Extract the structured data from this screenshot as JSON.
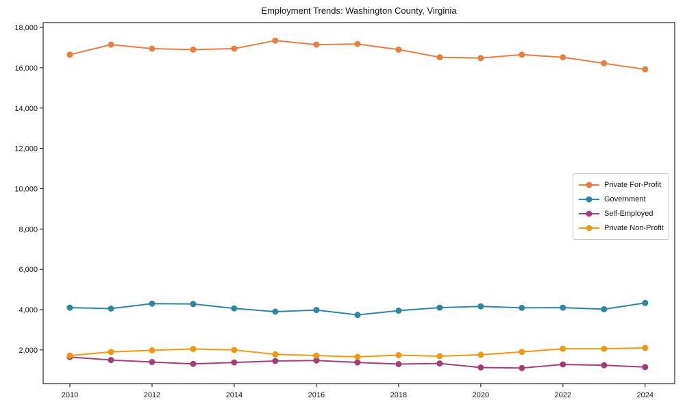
{
  "figure": {
    "background": "#ffffff",
    "spine_color": "#000000",
    "tick_color": "#000000"
  },
  "chart_data": {
    "type": "line",
    "title": "Employment Trends: Washington County, Virginia",
    "xlabel": "",
    "ylabel": "",
    "grid": false,
    "legend_position": "center-right",
    "marker": "circle",
    "x": [
      2010,
      2011,
      2012,
      2013,
      2014,
      2015,
      2016,
      2017,
      2018,
      2019,
      2020,
      2021,
      2022,
      2023,
      2024
    ],
    "xtick_values": [
      2010,
      2012,
      2014,
      2016,
      2018,
      2020,
      2022,
      2024
    ],
    "xtick_labels": [
      "2010",
      "2012",
      "2014",
      "2016",
      "2018",
      "2020",
      "2022",
      "2024"
    ],
    "ytick_values": [
      2000,
      4000,
      6000,
      8000,
      10000,
      12000,
      14000,
      16000,
      18000
    ],
    "ytick_labels": [
      "2,000",
      "4,000",
      "6,000",
      "8,000",
      "10,000",
      "12,000",
      "14,000",
      "16,000",
      "18,000"
    ],
    "xlim": [
      2009.35,
      2024.72
    ],
    "ylim": [
      330,
      18240
    ],
    "series": [
      {
        "name": "Private For-Profit",
        "color": "#e67e41",
        "values": [
          16650,
          17150,
          16950,
          16900,
          16950,
          17350,
          17150,
          17180,
          16900,
          16520,
          16480,
          16650,
          16520,
          16220,
          15920
        ]
      },
      {
        "name": "Government",
        "color": "#2e86a2",
        "values": [
          4100,
          4050,
          4300,
          4280,
          4060,
          3900,
          3980,
          3740,
          3950,
          4100,
          4160,
          4090,
          4100,
          4020,
          4330
        ]
      },
      {
        "name": "Self-Employed",
        "color": "#a23d79",
        "values": [
          1650,
          1500,
          1400,
          1310,
          1380,
          1450,
          1480,
          1380,
          1300,
          1330,
          1130,
          1100,
          1280,
          1240,
          1150
        ]
      },
      {
        "name": "Private Non-Profit",
        "color": "#f0980e",
        "values": [
          1720,
          1900,
          1980,
          2050,
          2000,
          1780,
          1720,
          1660,
          1740,
          1690,
          1760,
          1900,
          2060,
          2060,
          2100
        ]
      }
    ]
  }
}
